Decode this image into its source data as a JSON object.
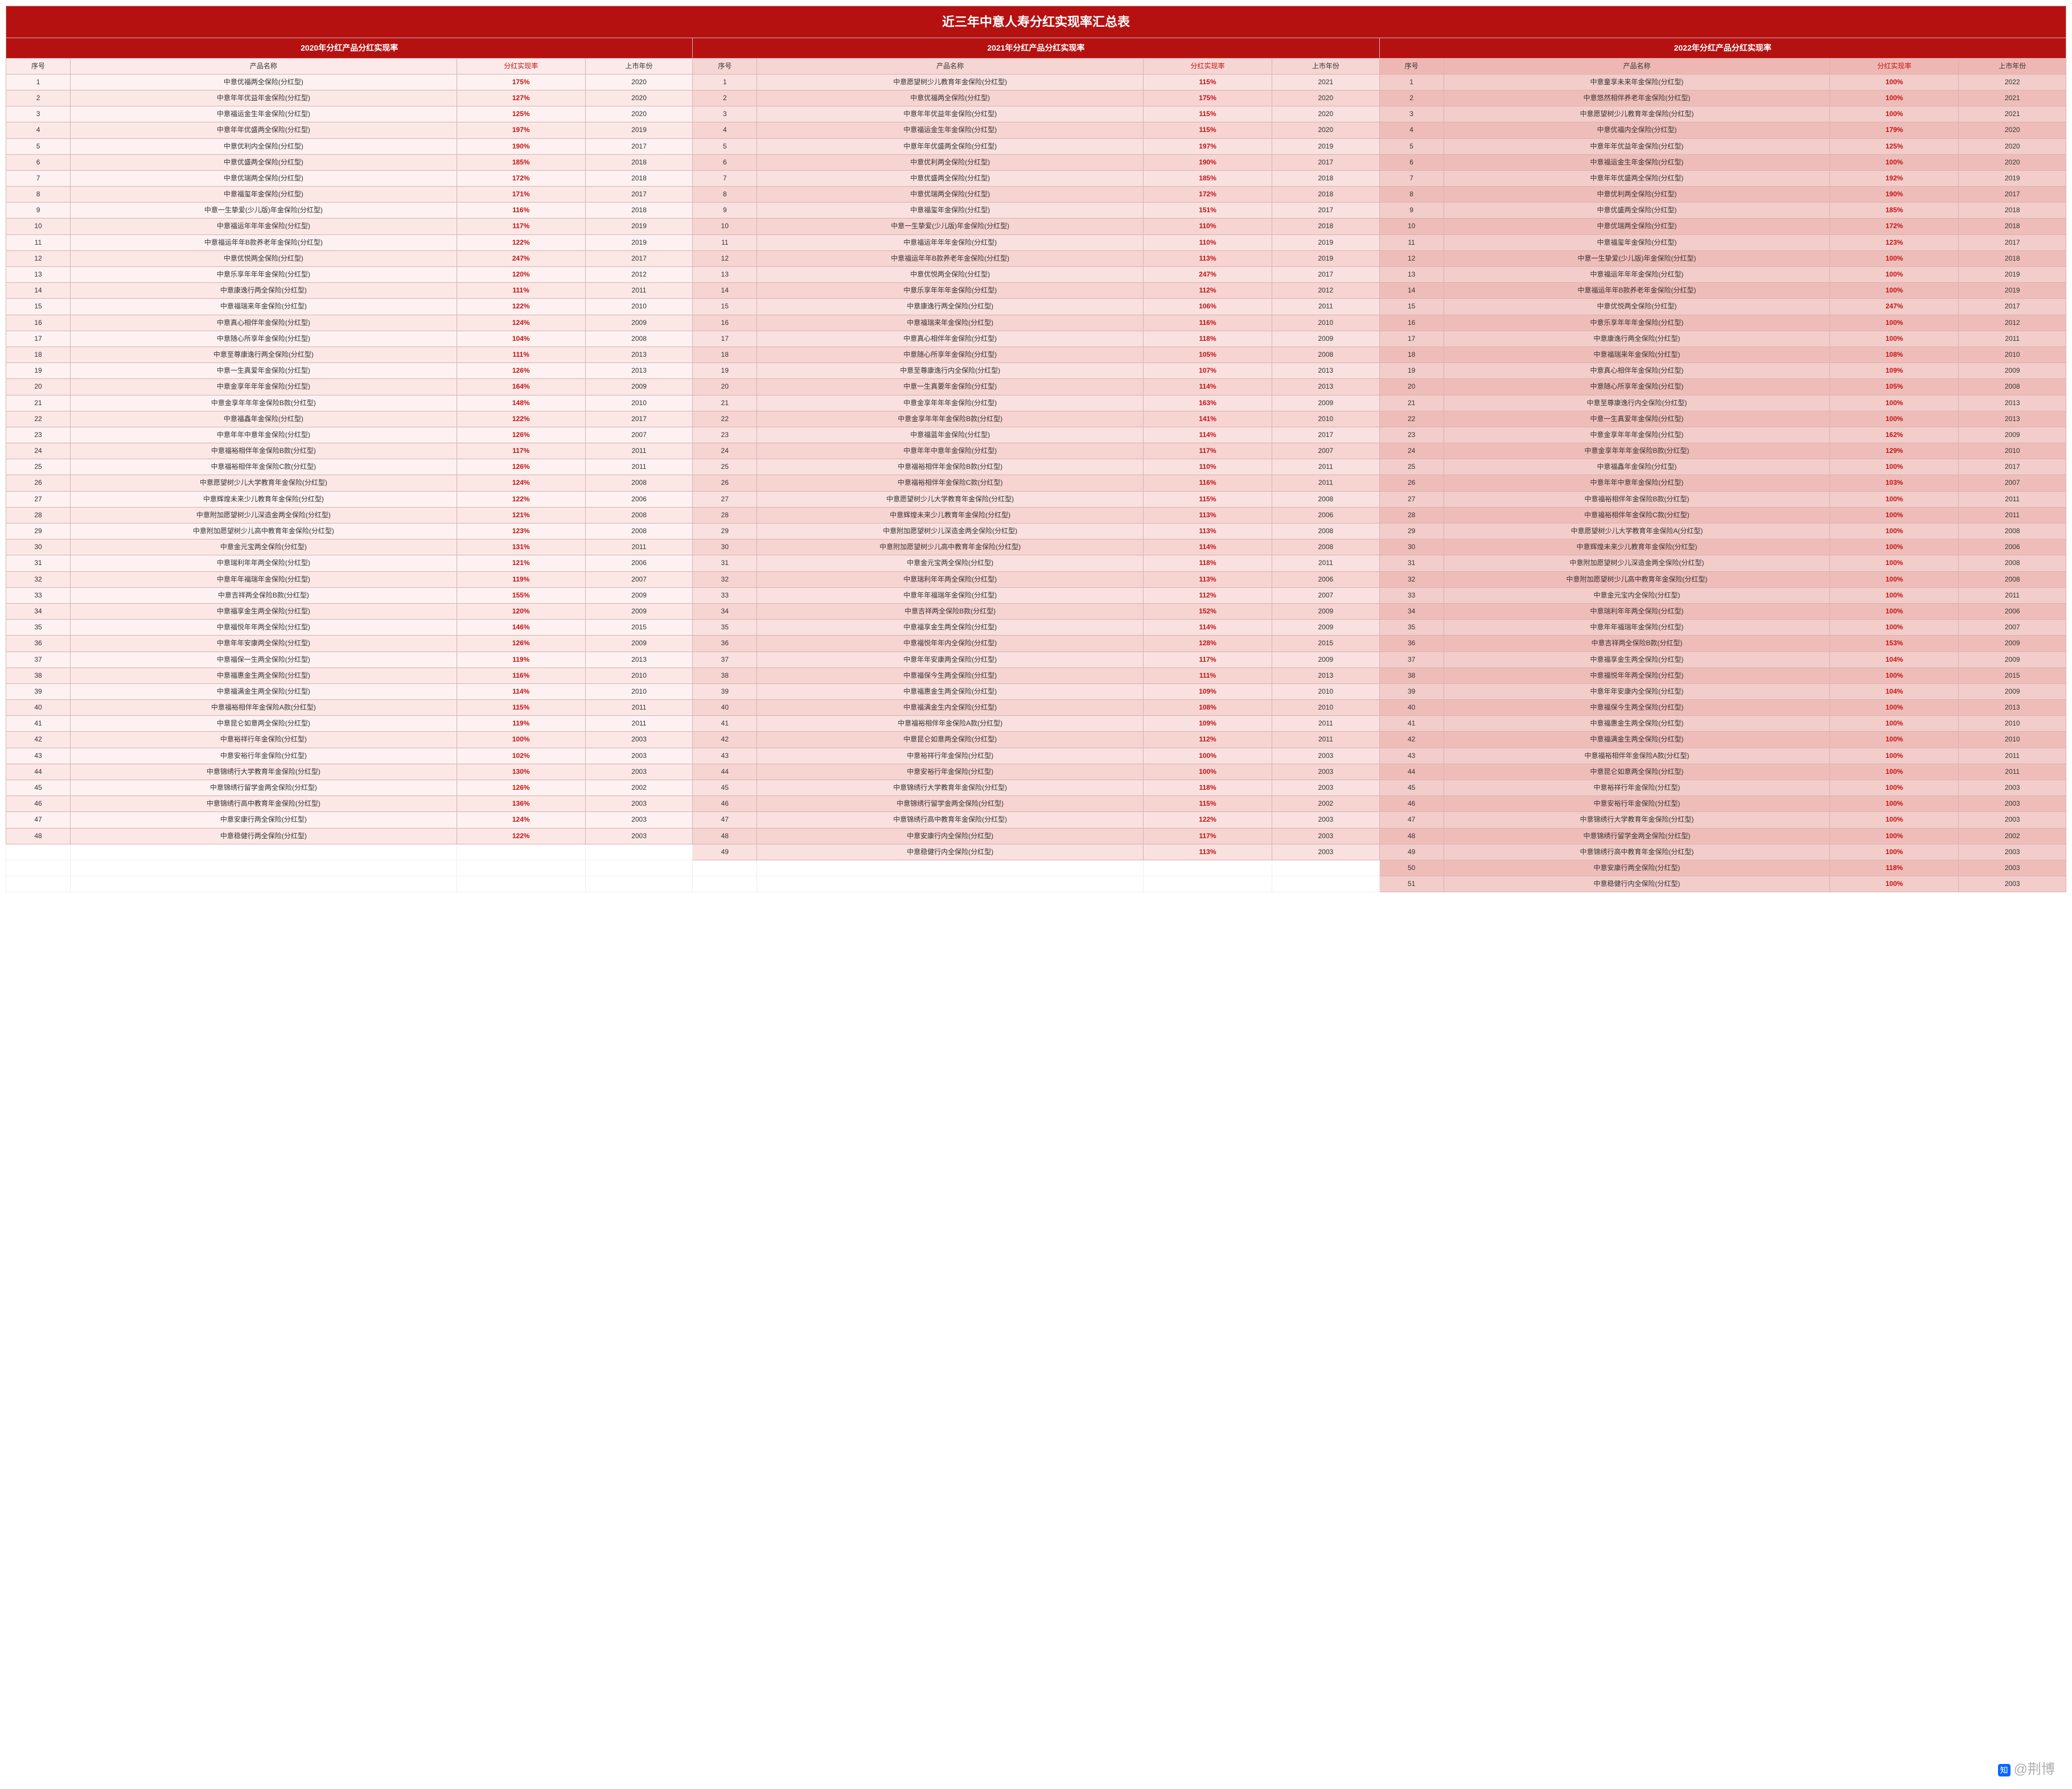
{
  "title": "近三年中意人寿分红实现率汇总表",
  "sections": [
    {
      "header": "2020年分红产品分红实现率",
      "cols": [
        "序号",
        "产品名称",
        "分红实现率",
        "上市年份"
      ]
    },
    {
      "header": "2021年分红产品分红实现率",
      "cols": [
        "序号",
        "产品名称",
        "分红实现率",
        "上市年份"
      ]
    },
    {
      "header": "2022年分红产品分红实现率",
      "cols": [
        "序号",
        "产品名称",
        "分红实现率",
        "上市年份"
      ]
    }
  ],
  "watermark": "@荆博",
  "colors": {
    "header_bg": "#b51111",
    "header_fg": "#ffffff",
    "rate_fg": "#c41313",
    "border": "#d4b2b2",
    "s1": [
      "#fdf2f1",
      "#fbe7e6"
    ],
    "s2": [
      "#f9e1df",
      "#f6d4d2"
    ],
    "s3": [
      "#f3cdca",
      "#efbdb9"
    ]
  },
  "data2020": [
    [
      "1",
      "中意优福两全保险(分红型)",
      "175%",
      "2020"
    ],
    [
      "2",
      "中意年年优益年金保险(分红型)",
      "127%",
      "2020"
    ],
    [
      "3",
      "中意福运金生年金保险(分红型)",
      "125%",
      "2020"
    ],
    [
      "4",
      "中意年年优盛两全保险(分红型)",
      "197%",
      "2019"
    ],
    [
      "5",
      "中意优利内全保险(分红型)",
      "190%",
      "2017"
    ],
    [
      "6",
      "中意优盛两全保险(分红型)",
      "185%",
      "2018"
    ],
    [
      "7",
      "中意优瑞两全保险(分红型)",
      "172%",
      "2018"
    ],
    [
      "8",
      "中意福玺年金保险(分红型)",
      "171%",
      "2017"
    ],
    [
      "9",
      "中意一生挚爱(少儿版)年金保险(分红型)",
      "116%",
      "2018"
    ],
    [
      "10",
      "中意福运年年年金保险(分红型)",
      "117%",
      "2019"
    ],
    [
      "11",
      "中意福运年年B款养老年金保险(分红型)",
      "122%",
      "2019"
    ],
    [
      "12",
      "中意优悦两全保险(分红型)",
      "247%",
      "2017"
    ],
    [
      "13",
      "中意乐享年年年金保险(分红型)",
      "120%",
      "2012"
    ],
    [
      "14",
      "中意康逸行两全保险(分红型)",
      "111%",
      "2011"
    ],
    [
      "15",
      "中意福瑞来年金保险(分红型)",
      "122%",
      "2010"
    ],
    [
      "16",
      "中意真心相伴年金保险(分红型)",
      "124%",
      "2009"
    ],
    [
      "17",
      "中意随心所享年金保险(分红型)",
      "104%",
      "2008"
    ],
    [
      "18",
      "中意至尊康逸行两全保险(分红型)",
      "111%",
      "2013"
    ],
    [
      "19",
      "中意一生真爱年金保险(分红型)",
      "126%",
      "2013"
    ],
    [
      "20",
      "中意金享年年年金保险(分红型)",
      "164%",
      "2009"
    ],
    [
      "21",
      "中意金享年年年金保险B款(分红型)",
      "148%",
      "2010"
    ],
    [
      "22",
      "中意福鑫年金保险(分红型)",
      "122%",
      "2017"
    ],
    [
      "23",
      "中意年年中意年金保险(分红型)",
      "126%",
      "2007"
    ],
    [
      "24",
      "中意福裕相伴年金保险B款(分红型)",
      "117%",
      "2011"
    ],
    [
      "25",
      "中意福裕相伴年金保险C款(分红型)",
      "126%",
      "2011"
    ],
    [
      "26",
      "中意愿望树少儿大学教育年金保险(分红型)",
      "124%",
      "2008"
    ],
    [
      "27",
      "中意辉煌未来少儿教育年金保险(分红型)",
      "122%",
      "2006"
    ],
    [
      "28",
      "中意附加愿望树少儿深造金两全保险(分红型)",
      "121%",
      "2008"
    ],
    [
      "29",
      "中意附加愿望树少儿高中教育年金保险(分红型)",
      "123%",
      "2008"
    ],
    [
      "30",
      "中意金元宝两全保险(分红型)",
      "131%",
      "2011"
    ],
    [
      "31",
      "中意瑞利年年两全保险(分红型)",
      "121%",
      "2006"
    ],
    [
      "32",
      "中意年年福瑞年金保险(分红型)",
      "119%",
      "2007"
    ],
    [
      "33",
      "中意吉祥两全保险B款(分红型)",
      "155%",
      "2009"
    ],
    [
      "34",
      "中意福享金生两全保险(分红型)",
      "120%",
      "2009"
    ],
    [
      "35",
      "中意福悦年年两全保险(分红型)",
      "146%",
      "2015"
    ],
    [
      "36",
      "中意年年安康两全保险(分红型)",
      "126%",
      "2009"
    ],
    [
      "37",
      "中意福保一生两全保险(分红型)",
      "119%",
      "2013"
    ],
    [
      "38",
      "中意福惠金生两全保险(分红型)",
      "116%",
      "2010"
    ],
    [
      "39",
      "中意福满金生两全保险(分红型)",
      "114%",
      "2010"
    ],
    [
      "40",
      "中意福裕相伴年金保险A款(分红型)",
      "115%",
      "2011"
    ],
    [
      "41",
      "中意昆仑如意两全保险(分红型)",
      "119%",
      "2011"
    ],
    [
      "42",
      "中意裕祥行年金保险(分红型)",
      "100%",
      "2003"
    ],
    [
      "43",
      "中意安裕行年金保险(分红型)",
      "102%",
      "2003"
    ],
    [
      "44",
      "中意锦绣行大学教育年金保险(分红型)",
      "130%",
      "2003"
    ],
    [
      "45",
      "中意锦绣行留学金两全保险(分红型)",
      "126%",
      "2002"
    ],
    [
      "46",
      "中意锦绣行高中教育年金保险(分红型)",
      "136%",
      "2003"
    ],
    [
      "47",
      "中意安康行两全保险(分红型)",
      "124%",
      "2003"
    ],
    [
      "48",
      "中意稳健行两全保险(分红型)",
      "122%",
      "2003"
    ]
  ],
  "data2021": [
    [
      "1",
      "中意愿望树少儿教育年金保险(分红型)",
      "115%",
      "2021"
    ],
    [
      "2",
      "中意优福两全保险(分红型)",
      "175%",
      "2020"
    ],
    [
      "3",
      "中意年年优益年金保险(分红型)",
      "115%",
      "2020"
    ],
    [
      "4",
      "中意福运金生年金保险(分红型)",
      "115%",
      "2020"
    ],
    [
      "5",
      "中意年年优盛两全保险(分红型)",
      "197%",
      "2019"
    ],
    [
      "6",
      "中意优利两全保险(分红型)",
      "190%",
      "2017"
    ],
    [
      "7",
      "中意优盛两全保险(分红型)",
      "185%",
      "2018"
    ],
    [
      "8",
      "中意优瑞两全保险(分红型)",
      "172%",
      "2018"
    ],
    [
      "9",
      "中意福玺年金保险(分红型)",
      "151%",
      "2017"
    ],
    [
      "10",
      "中意一生挚爱(少儿版)年金保险(分红型)",
      "110%",
      "2018"
    ],
    [
      "11",
      "中意福运年年年金保险(分红型)",
      "110%",
      "2019"
    ],
    [
      "12",
      "中意福运年年B款养老年金保险(分红型)",
      "113%",
      "2019"
    ],
    [
      "13",
      "中意优悦两全保险(分红型)",
      "247%",
      "2017"
    ],
    [
      "14",
      "中意乐享年年年金保险(分红型)",
      "112%",
      "2012"
    ],
    [
      "15",
      "中意康逸行两全保险(分红型)",
      "106%",
      "2011"
    ],
    [
      "16",
      "中意福瑞来年金保险(分红型)",
      "116%",
      "2010"
    ],
    [
      "17",
      "中意真心相伴年金保险(分红型)",
      "118%",
      "2009"
    ],
    [
      "18",
      "中意随心所享年金保险(分红型)",
      "105%",
      "2008"
    ],
    [
      "19",
      "中意至尊康逸行内全保险(分红型)",
      "107%",
      "2013"
    ],
    [
      "20",
      "中意一生真要年金保险(分红型)",
      "114%",
      "2013"
    ],
    [
      "21",
      "中意金享年年年金保险(分红型)",
      "163%",
      "2009"
    ],
    [
      "22",
      "中意金享年年年金保险B款(分红型)",
      "141%",
      "2010"
    ],
    [
      "23",
      "中意福蓝年金保险(分红型)",
      "114%",
      "2017"
    ],
    [
      "24",
      "中意年年中意年金保险(分红型)",
      "117%",
      "2007"
    ],
    [
      "25",
      "中意福裕相伴年金保险B款(分红型)",
      "110%",
      "2011"
    ],
    [
      "26",
      "中意福裕相伴年金保险C款(分红型)",
      "116%",
      "2011"
    ],
    [
      "27",
      "中意愿望树少儿大学教育年金保险(分红型)",
      "115%",
      "2008"
    ],
    [
      "28",
      "中意辉煌未来少儿教育年金保险(分红型)",
      "113%",
      "2006"
    ],
    [
      "29",
      "中意附加愿望树少儿深造金两全保险(分红型)",
      "113%",
      "2008"
    ],
    [
      "30",
      "中意附加愿望树少儿高中教育年金保险(分红型)",
      "114%",
      "2008"
    ],
    [
      "31",
      "中意金元宝两全保险(分红型)",
      "118%",
      "2011"
    ],
    [
      "32",
      "中意瑞利年年两全保险(分红型)",
      "113%",
      "2006"
    ],
    [
      "33",
      "中意年年福瑞年金保险(分红型)",
      "112%",
      "2007"
    ],
    [
      "34",
      "中意吉祥两全保险B款(分红型)",
      "152%",
      "2009"
    ],
    [
      "35",
      "中意福享金生两全保险(分红型)",
      "114%",
      "2009"
    ],
    [
      "36",
      "中意福悦年年内全保险(分红型)",
      "128%",
      "2015"
    ],
    [
      "37",
      "中意年年安康两全保险(分红型)",
      "117%",
      "2009"
    ],
    [
      "38",
      "中意福保今生两全保险(分红型)",
      "111%",
      "2013"
    ],
    [
      "39",
      "中意福惠金生两全保险(分红型)",
      "109%",
      "2010"
    ],
    [
      "40",
      "中意福满金生内全保险(分红型)",
      "108%",
      "2010"
    ],
    [
      "41",
      "中意福裕相伴年金保险A款(分红型)",
      "109%",
      "2011"
    ],
    [
      "42",
      "中意昆仑如意两全保险(分红型)",
      "112%",
      "2011"
    ],
    [
      "43",
      "中意裕祥行年金保险(分红型)",
      "100%",
      "2003"
    ],
    [
      "44",
      "中意安裕行年金保险(分红型)",
      "100%",
      "2003"
    ],
    [
      "45",
      "中意锦绣行大学教育年金保险(分红型)",
      "118%",
      "2003"
    ],
    [
      "46",
      "中意锦绣行留学金两全保险(分红型)",
      "115%",
      "2002"
    ],
    [
      "47",
      "中意锦绣行高中教育年金保险(分红型)",
      "122%",
      "2003"
    ],
    [
      "48",
      "中意安康行内全保险(分红型)",
      "117%",
      "2003"
    ],
    [
      "49",
      "中意稳健行内全保险(分红型)",
      "113%",
      "2003"
    ]
  ],
  "data2022": [
    [
      "1",
      "中意童享未来年金保险(分红型)",
      "100%",
      "2022"
    ],
    [
      "2",
      "中意悠然相伴养老年金保险(分红型)",
      "100%",
      "2021"
    ],
    [
      "3",
      "中意愿望树少儿教育年金保险(分红型)",
      "100%",
      "2021"
    ],
    [
      "4",
      "中意优福内全保险(分红型)",
      "179%",
      "2020"
    ],
    [
      "5",
      "中意年年优益年金保险(分红型)",
      "125%",
      "2020"
    ],
    [
      "6",
      "中意福运金生年金保险(分红型)",
      "100%",
      "2020"
    ],
    [
      "7",
      "中意年年优盛两全保险(分红型)",
      "192%",
      "2019"
    ],
    [
      "8",
      "中意优利两全保险(分红型)",
      "190%",
      "2017"
    ],
    [
      "9",
      "中意优盛两全保险(分红型)",
      "185%",
      "2018"
    ],
    [
      "10",
      "中意优瑞两全保险(分红型)",
      "172%",
      "2018"
    ],
    [
      "11",
      "中意福玺年金保险(分红型)",
      "123%",
      "2017"
    ],
    [
      "12",
      "中意一生挚爱(少儿版)年金保险(分红型)",
      "100%",
      "2018"
    ],
    [
      "13",
      "中意福运年年年金保险(分红型)",
      "100%",
      "2019"
    ],
    [
      "14",
      "中意福运年年B款养老年金保险(分红型)",
      "100%",
      "2019"
    ],
    [
      "15",
      "中意优悦两全保险(分红型)",
      "247%",
      "2017"
    ],
    [
      "16",
      "中意乐享年年年金保险(分红型)",
      "100%",
      "2012"
    ],
    [
      "17",
      "中意康逸行两全保险(分红型)",
      "100%",
      "2011"
    ],
    [
      "18",
      "中意福瑞来年金保险(分红型)",
      "108%",
      "2010"
    ],
    [
      "19",
      "中意真心相伴年金保险(分红型)",
      "109%",
      "2009"
    ],
    [
      "20",
      "中意随心所享年金保险(分红型)",
      "105%",
      "2008"
    ],
    [
      "21",
      "中意至尊康逸行内全保险(分红型)",
      "100%",
      "2013"
    ],
    [
      "22",
      "中意一生真爱年金保险(分红型)",
      "100%",
      "2013"
    ],
    [
      "23",
      "中意金享年年年金保险(分红型)",
      "162%",
      "2009"
    ],
    [
      "24",
      "中意金享年年年金保险B款(分红型)",
      "129%",
      "2010"
    ],
    [
      "25",
      "中意福鑫年金保险(分红型)",
      "100%",
      "2017"
    ],
    [
      "26",
      "中意年年中意年金保险(分红型)",
      "103%",
      "2007"
    ],
    [
      "27",
      "中意福裕相伴年金保险B款(分红型)",
      "100%",
      "2011"
    ],
    [
      "28",
      "中意福裕相伴年金保险C款(分红型)",
      "100%",
      "2011"
    ],
    [
      "29",
      "中意愿望树少儿大学教育年金保险A(分红型)",
      "100%",
      "2008"
    ],
    [
      "30",
      "中意辉煌未来少儿教育年金保险(分红型)",
      "100%",
      "2006"
    ],
    [
      "31",
      "中意附加愿望树少儿深造金两全保险(分红型)",
      "100%",
      "2008"
    ],
    [
      "32",
      "中意附加愿望树少儿高中教育年金保险(分红型)",
      "100%",
      "2008"
    ],
    [
      "33",
      "中意金元宝内全保险(分红型)",
      "100%",
      "2011"
    ],
    [
      "34",
      "中意瑞利年年两全保险(分红型)",
      "100%",
      "2006"
    ],
    [
      "35",
      "中意年年福瑞年金保险(分红型)",
      "100%",
      "2007"
    ],
    [
      "36",
      "中意吉祥两全保险B款(分红型)",
      "153%",
      "2009"
    ],
    [
      "37",
      "中意福享金生两全保险(分红型)",
      "104%",
      "2009"
    ],
    [
      "38",
      "中意福悦年年两全保险(分红型)",
      "100%",
      "2015"
    ],
    [
      "39",
      "中意年年安康内全保险(分红型)",
      "104%",
      "2009"
    ],
    [
      "40",
      "中意福保今生两全保险(分红型)",
      "100%",
      "2013"
    ],
    [
      "41",
      "中意福惠金生两全保险(分红型)",
      "100%",
      "2010"
    ],
    [
      "42",
      "中意福满金生两全保险(分红型)",
      "100%",
      "2010"
    ],
    [
      "43",
      "中意福裕相伴年金保险A款(分红型)",
      "100%",
      "2011"
    ],
    [
      "44",
      "中意昆仑如意两全保险(分红型)",
      "100%",
      "2011"
    ],
    [
      "45",
      "中意裕祥行年金保险(分红型)",
      "100%",
      "2003"
    ],
    [
      "46",
      "中意安裕行年金保险(分红型)",
      "100%",
      "2003"
    ],
    [
      "47",
      "中意锦绣行大学教育年金保险(分红型)",
      "100%",
      "2003"
    ],
    [
      "48",
      "中意锦绣行留学金两全保险(分红型)",
      "100%",
      "2002"
    ],
    [
      "49",
      "中意锦绣行高中教育年金保险(分红型)",
      "100%",
      "2003"
    ],
    [
      "50",
      "中意安康行两全保险(分红型)",
      "118%",
      "2003"
    ],
    [
      "51",
      "中意稳健行内全保险(分红型)",
      "100%",
      "2003"
    ]
  ]
}
